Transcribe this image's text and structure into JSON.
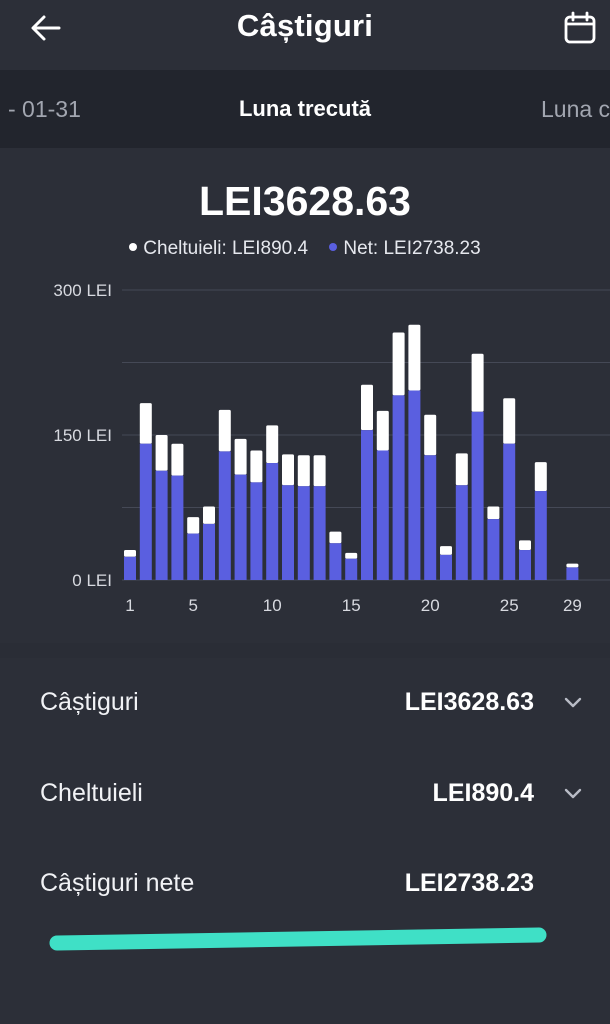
{
  "header": {
    "title": "Câștiguri",
    "back_icon": "arrow-left-icon",
    "calendar_icon": "calendar-icon"
  },
  "periods": {
    "previous": "- 01-31",
    "current": "Luna trecută",
    "next": "Luna c"
  },
  "summary_header": {
    "total": "LEI3628.63",
    "legend": [
      {
        "label": "Cheltuieli: LEI890.4",
        "color": "#ffffff"
      },
      {
        "label": "Net: LEI2738.23",
        "color": "#5a5fe0"
      }
    ]
  },
  "chart_data": {
    "type": "bar",
    "stacked": true,
    "y_tick_labels": [
      "300 LEI",
      "150 LEI",
      "0 LEI"
    ],
    "y_ticks": [
      300,
      150,
      0
    ],
    "ylim": [
      0,
      300
    ],
    "x_tick_labels": [
      "1",
      "5",
      "10",
      "15",
      "20",
      "25",
      "29"
    ],
    "x_tick_days": [
      1,
      5,
      10,
      15,
      20,
      25,
      29
    ],
    "x": [
      1,
      2,
      3,
      4,
      5,
      6,
      7,
      8,
      9,
      10,
      11,
      12,
      13,
      14,
      15,
      16,
      17,
      18,
      19,
      20,
      21,
      22,
      23,
      24,
      25,
      26,
      27,
      28,
      29
    ],
    "series": [
      {
        "name": "Net",
        "color": "#5a5fe0",
        "values": [
          24,
          141,
          113,
          108,
          48,
          58,
          133,
          109,
          101,
          121,
          98,
          97,
          97,
          38,
          22,
          155,
          134,
          191,
          196,
          129,
          26,
          98,
          174,
          63,
          141,
          31,
          92,
          0,
          13
        ]
      },
      {
        "name": "Cheltuieli",
        "color": "#ffffff",
        "values": [
          7,
          42,
          37,
          33,
          17,
          18,
          43,
          37,
          33,
          39,
          32,
          32,
          32,
          12,
          6,
          47,
          41,
          65,
          68,
          42,
          9,
          33,
          60,
          13,
          47,
          10,
          30,
          0,
          4
        ]
      }
    ],
    "gridlines": [
      300,
      225,
      150,
      75,
      0
    ]
  },
  "rows": [
    {
      "label": "Câștiguri",
      "value": "LEI3628.63",
      "chevron": "chevron-down-icon"
    },
    {
      "label": "Cheltuieli",
      "value": "LEI890.4",
      "chevron": "chevron-down-icon"
    },
    {
      "label": "Câștiguri nete",
      "value": "LEI2738.23"
    }
  ],
  "colors": {
    "accent_net": "#5a5fe0",
    "spend": "#ffffff",
    "home_indicator": "#3fe0c6",
    "background": "#2a2d36"
  }
}
